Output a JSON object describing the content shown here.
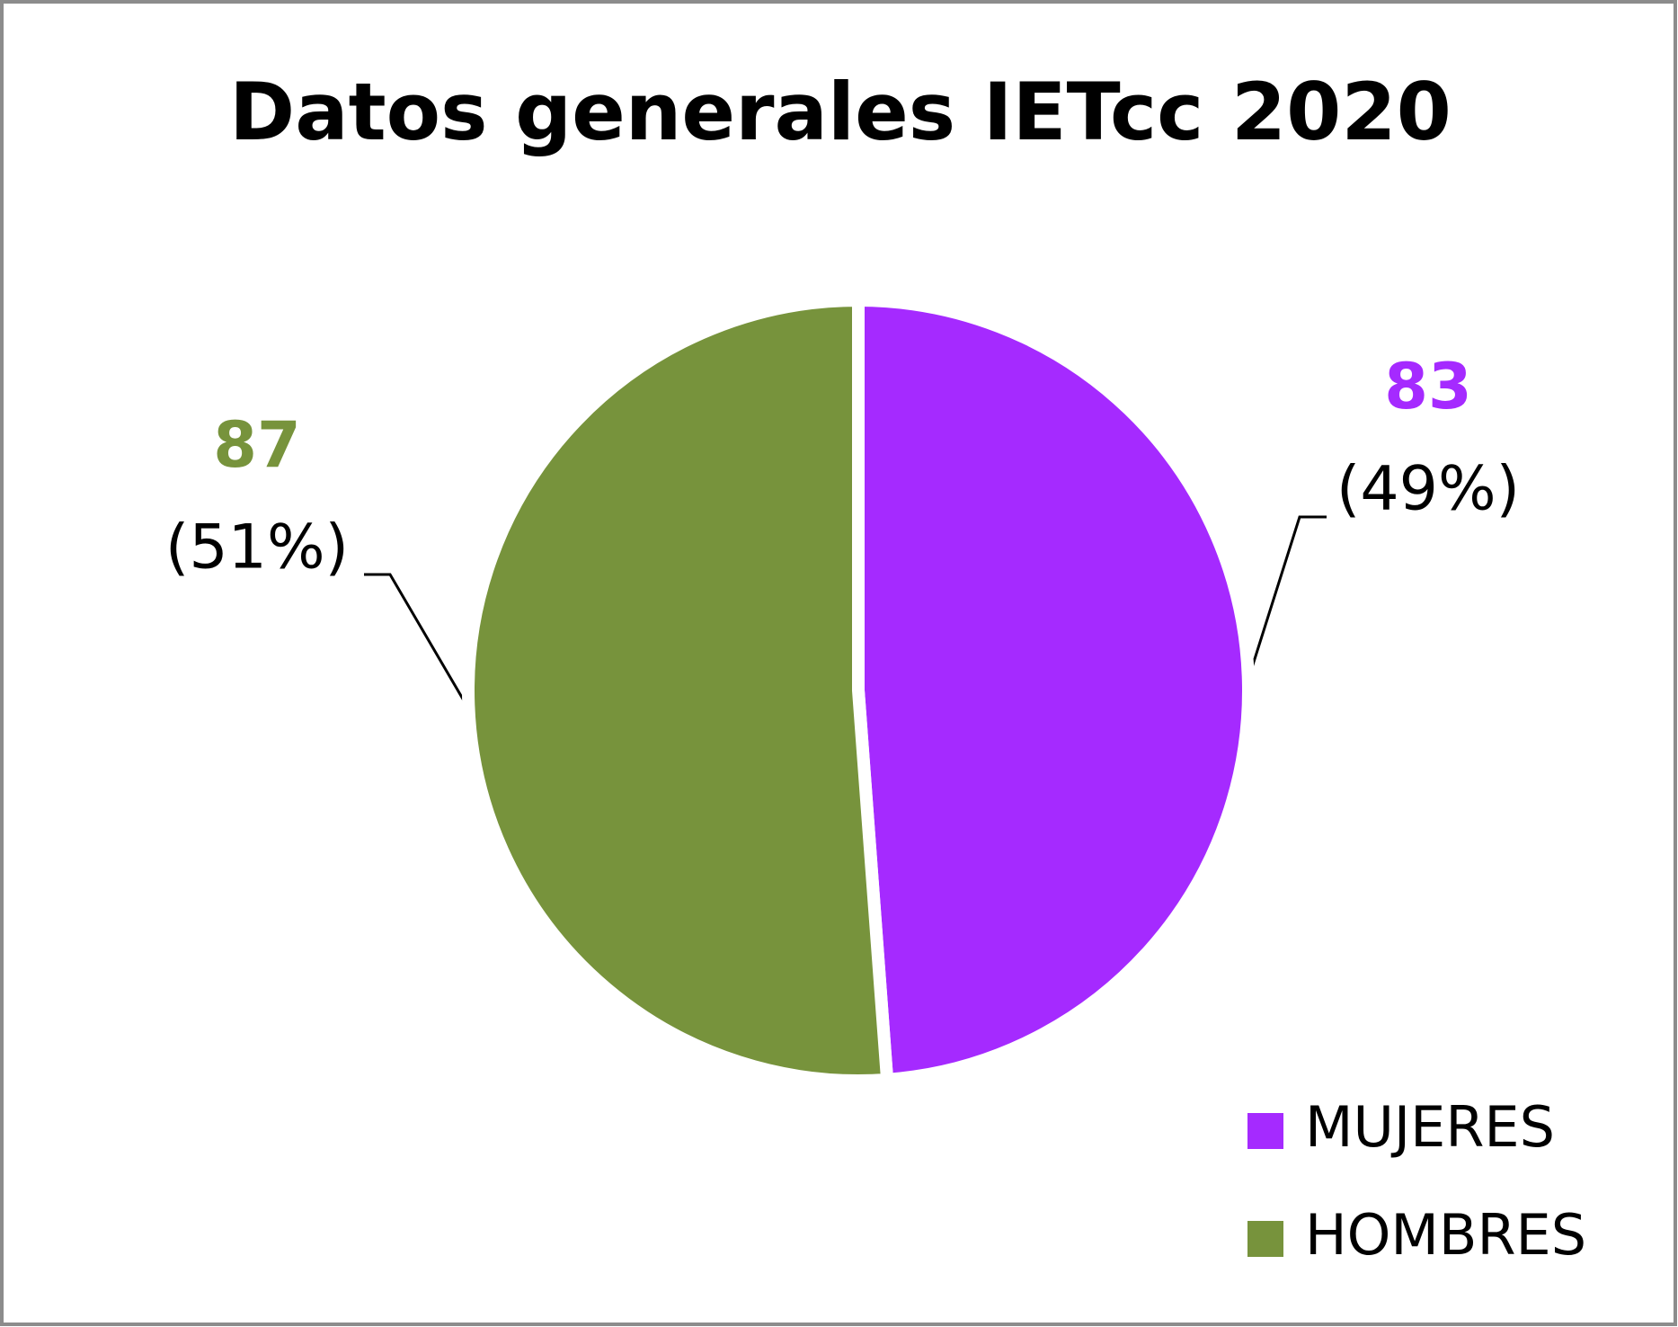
{
  "chart_data": {
    "type": "pie",
    "title": "Datos generales IETcc 2020",
    "categories": [
      "MUJERES",
      "HOMBRES"
    ],
    "series": [
      {
        "name": "MUJERES",
        "color": "#a52aff"
      },
      {
        "name": "HOMBRES",
        "color": "#77933c"
      }
    ],
    "values": [
      83,
      87
    ],
    "shares": [
      49,
      51
    ],
    "share_labels": [
      "(49%)",
      "(51%)"
    ],
    "legend": "bottom-right"
  }
}
